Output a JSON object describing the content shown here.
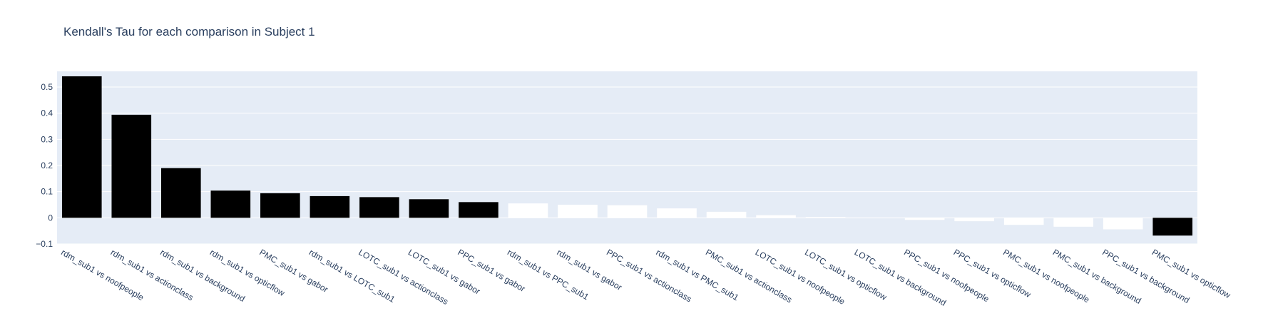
{
  "chart_data": {
    "type": "bar",
    "title": "Kendall's Tau for each comparison in Subject 1",
    "xlabel": "",
    "ylabel": "",
    "ylim": [
      -0.1,
      0.56
    ],
    "yticks": [
      -0.1,
      0,
      0.1,
      0.2,
      0.3,
      0.4,
      0.5
    ],
    "ytick_labels": [
      "−0.1",
      "0",
      "0.1",
      "0.2",
      "0.3",
      "0.4",
      "0.5"
    ],
    "grid": true,
    "colors": {
      "plot_bg": "#e5ecf6",
      "grid": "#ffffff",
      "text": "#2a3f5f",
      "significant_bar": "#000000",
      "nonsignificant_bar": "#ffffff"
    },
    "categories": [
      "rdm_sub1 vs noofpeople",
      "rdm_sub1 vs actionclass",
      "rdm_sub1 vs background",
      "rdm_sub1 vs opticflow",
      "PMC_sub1 vs gabor",
      "rdm_sub1 vs LOTC_sub1",
      "LOTC_sub1 vs actionclass",
      "LOTC_sub1 vs gabor",
      "PPC_sub1 vs gabor",
      "rdm_sub1 vs PPC_sub1",
      "rdm_sub1 vs gabor",
      "PPC_sub1 vs actionclass",
      "rdm_sub1 vs PMC_sub1",
      "PMC_sub1 vs actionclass",
      "LOTC_sub1 vs noofpeople",
      "LOTC_sub1 vs opticflow",
      "LOTC_sub1 vs background",
      "PPC_sub1 vs noofpeople",
      "PPC_sub1 vs opticflow",
      "PMC_sub1 vs noofpeople",
      "PMC_sub1 vs background",
      "PPC_sub1 vs background",
      "PMC_sub1 vs opticflow"
    ],
    "values": [
      0.541,
      0.394,
      0.19,
      0.104,
      0.094,
      0.083,
      0.079,
      0.071,
      0.06,
      0.055,
      0.05,
      0.048,
      0.036,
      0.023,
      0.01,
      0.003,
      0.001,
      -0.008,
      -0.013,
      -0.027,
      -0.034,
      -0.044,
      -0.068
    ],
    "bar_colors": [
      "black",
      "black",
      "black",
      "black",
      "black",
      "black",
      "black",
      "black",
      "black",
      "white",
      "white",
      "white",
      "white",
      "white",
      "white",
      "white",
      "white",
      "white",
      "white",
      "white",
      "white",
      "white",
      "black"
    ]
  }
}
